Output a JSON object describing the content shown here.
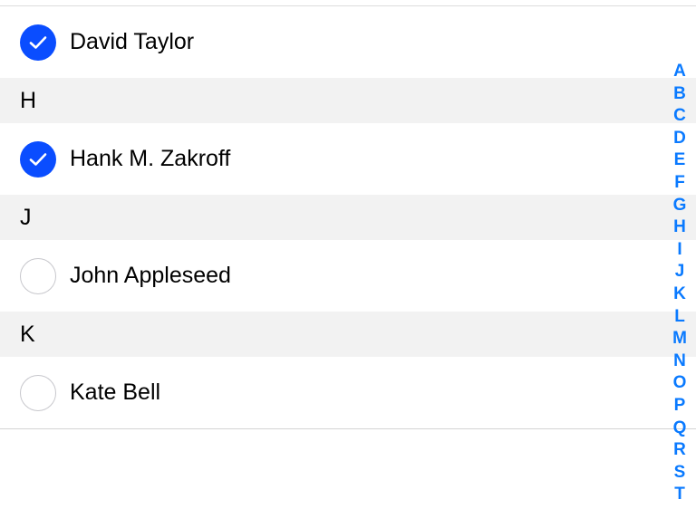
{
  "accent_color": "#0a4dff",
  "index_color": "#0a7aff",
  "sections": [
    {
      "header": null,
      "rows": [
        {
          "name": "David Taylor",
          "selected": true
        }
      ]
    },
    {
      "header": "H",
      "rows": [
        {
          "name": "Hank M. Zakroff",
          "selected": true
        }
      ]
    },
    {
      "header": "J",
      "rows": [
        {
          "name": "John Appleseed",
          "selected": false
        }
      ]
    },
    {
      "header": "K",
      "rows": [
        {
          "name": "Kate Bell",
          "selected": false
        }
      ]
    }
  ],
  "section_index": [
    "A",
    "B",
    "C",
    "D",
    "E",
    "F",
    "G",
    "H",
    "I",
    "J",
    "K",
    "L",
    "M",
    "N",
    "O",
    "P",
    "Q",
    "R",
    "S",
    "T"
  ]
}
